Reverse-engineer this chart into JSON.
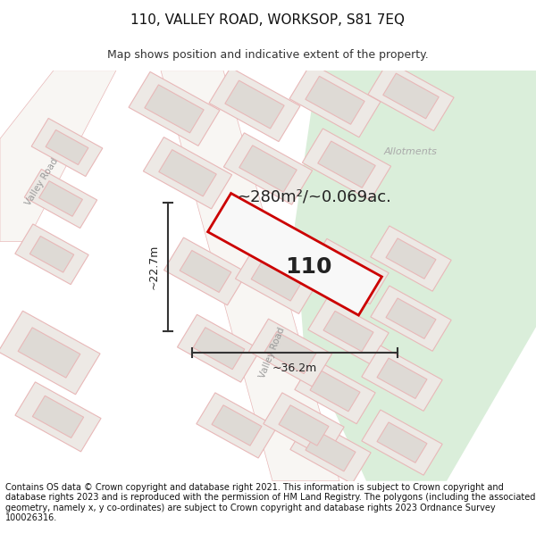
{
  "title": "110, VALLEY ROAD, WORKSOP, S81 7EQ",
  "subtitle": "Map shows position and indicative extent of the property.",
  "footer": "Contains OS data © Crown copyright and database right 2021. This information is subject to Crown copyright and database rights 2023 and is reproduced with the permission of HM Land Registry. The polygons (including the associated geometry, namely x, y co-ordinates) are subject to Crown copyright and database rights 2023 Ordnance Survey 100026316.",
  "area_label": "~280m²/~0.069ac.",
  "number_label": "110",
  "dim_width": "~36.2m",
  "dim_height": "~22.7m",
  "allotments_label": "Allotments",
  "valley_road_label1": "Valley Road",
  "valley_road_label2": "Valley Road",
  "map_bg": "#f0eeeb",
  "green_area_color": "#daeeda",
  "road_fill": "#f8f6f3",
  "plot_fill": "#ebe8e4",
  "building_fill": "#dedad5",
  "road_edge": "#e8b8b8",
  "property_color": "#cc0000",
  "dim_color": "#333333",
  "text_color": "#222222",
  "label_color": "#999999",
  "title_fontsize": 11,
  "subtitle_fontsize": 9,
  "footer_fontsize": 7,
  "area_fontsize": 13,
  "number_fontsize": 18,
  "dim_fontsize": 9
}
